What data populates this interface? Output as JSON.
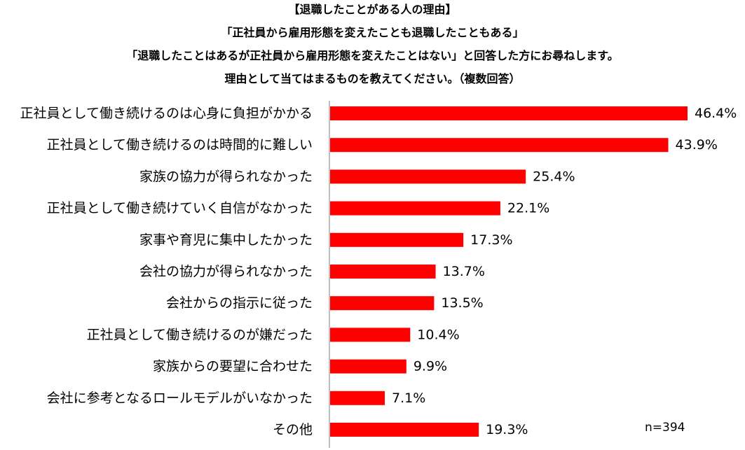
{
  "titles": [
    "【退職したことがある人の理由】",
    "「正社員から雇用形態を変えたことも退職したこともある」",
    "「退職したことはあるが正社員から雇用形態を変えたことはない」と回答した方にお尋ねします。",
    "理由として当てはまるものを教えてください。（複数回答）"
  ],
  "sample_size": "n=394",
  "chart_data": {
    "type": "bar",
    "orientation": "horizontal",
    "title": "【退職したことがある人の理由】",
    "categories": [
      "正社員として働き続けるのは心身に負担がかかる",
      "正社員として働き続けるのは時間的に難しい",
      "家族の協力が得られなかった",
      "正社員として働き続けていく自信がなかった",
      "家事や育児に集中したかった",
      "会社の協力が得られなかった",
      "会社からの指示に従った",
      "正社員として働き続けるのが嫌だった",
      "家族からの要望に合わせた",
      "会社に参考となるロールモデルがいなかった",
      "その他"
    ],
    "values": [
      46.4,
      43.9,
      25.4,
      22.1,
      17.3,
      13.7,
      13.5,
      10.4,
      9.9,
      7.1,
      19.3
    ],
    "value_labels": [
      "46.4%",
      "43.9%",
      "25.4%",
      "22.1%",
      "17.3%",
      "13.7%",
      "13.5%",
      "10.4%",
      "9.9%",
      "7.1%",
      "19.3%"
    ],
    "unit": "%",
    "bar_color": "#ff0000",
    "grid": false,
    "legend": "none"
  }
}
